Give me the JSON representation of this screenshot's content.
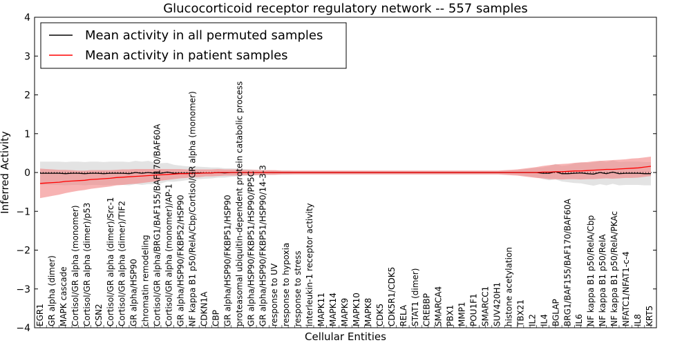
{
  "chart_data": {
    "type": "line",
    "title": "Glucocorticoid receptor regulatory network -- 557 samples",
    "xlabel": "Cellular Entities",
    "ylabel": "Inferred Activity",
    "ylim": [
      -4,
      4
    ],
    "yticks": [
      -4,
      -3,
      -2,
      -1,
      0,
      1,
      2,
      3,
      4
    ],
    "n_points": 97,
    "legend_placement": "top-left",
    "series": [
      {
        "name": "Mean activity in all permuted samples",
        "color": "#000000",
        "band_color": "#cccccc",
        "values": [
          -0.02,
          -0.02,
          -0.02,
          -0.02,
          -0.03,
          -0.02,
          -0.02,
          -0.03,
          -0.02,
          -0.02,
          -0.03,
          -0.02,
          -0.02,
          -0.02,
          -0.03,
          0.0,
          -0.02,
          0.0,
          -0.02,
          -0.02,
          0.01,
          -0.02,
          -0.02,
          -0.02,
          -0.01,
          -0.01,
          -0.01,
          -0.01,
          0.0,
          -0.01,
          0.0,
          0.0,
          0.0,
          0.0,
          0.0,
          0.0,
          0.0,
          0.0,
          0.0,
          0.0,
          0.0,
          0.0,
          0.0,
          0.0,
          0.0,
          0.0,
          0.0,
          0.0,
          0.0,
          0.0,
          0.0,
          0.0,
          0.0,
          0.0,
          0.0,
          0.0,
          0.0,
          0.0,
          0.0,
          0.0,
          0.0,
          0.0,
          0.0,
          0.0,
          0.0,
          0.0,
          0.0,
          0.0,
          0.0,
          0.0,
          0.0,
          0.0,
          0.0,
          0.0,
          0.0,
          0.0,
          0.0,
          0.0,
          0.0,
          -0.02,
          -0.02,
          0.02,
          -0.03,
          -0.03,
          -0.02,
          -0.01,
          -0.03,
          -0.04,
          0.0,
          -0.03,
          0.01,
          -0.03,
          -0.02,
          -0.02,
          -0.02,
          -0.03,
          -0.03
        ],
        "band_halfwidth": [
          0.3,
          0.3,
          0.3,
          0.3,
          0.3,
          0.3,
          0.3,
          0.3,
          0.3,
          0.3,
          0.3,
          0.3,
          0.3,
          0.3,
          0.3,
          0.3,
          0.3,
          0.3,
          0.28,
          0.26,
          0.24,
          0.22,
          0.2,
          0.18,
          0.17,
          0.16,
          0.15,
          0.14,
          0.13,
          0.12,
          0.11,
          0.1,
          0.09,
          0.08,
          0.07,
          0.06,
          0.06,
          0.05,
          0.05,
          0.05,
          0.04,
          0.04,
          0.04,
          0.04,
          0.04,
          0.04,
          0.04,
          0.04,
          0.04,
          0.04,
          0.04,
          0.04,
          0.04,
          0.04,
          0.04,
          0.04,
          0.04,
          0.04,
          0.04,
          0.04,
          0.04,
          0.04,
          0.04,
          0.04,
          0.04,
          0.04,
          0.04,
          0.04,
          0.04,
          0.04,
          0.04,
          0.04,
          0.04,
          0.05,
          0.05,
          0.06,
          0.08,
          0.1,
          0.12,
          0.15,
          0.18,
          0.2,
          0.2,
          0.22,
          0.25,
          0.27,
          0.28,
          0.3,
          0.3,
          0.3,
          0.3,
          0.3,
          0.3,
          0.3,
          0.3,
          0.3,
          0.3
        ]
      },
      {
        "name": "Mean activity in patient samples",
        "color": "#ff0000",
        "band_color": "#f28080",
        "values": [
          -0.28,
          -0.27,
          -0.26,
          -0.25,
          -0.23,
          -0.22,
          -0.21,
          -0.2,
          -0.18,
          -0.17,
          -0.16,
          -0.15,
          -0.13,
          -0.12,
          -0.11,
          -0.1,
          -0.09,
          -0.08,
          -0.07,
          -0.06,
          -0.05,
          -0.04,
          -0.03,
          -0.03,
          -0.02,
          -0.02,
          -0.01,
          -0.01,
          0.0,
          0.0,
          0.0,
          0.0,
          0.0,
          0.0,
          0.0,
          0.0,
          0.0,
          0.0,
          0.0,
          0.0,
          0.0,
          0.0,
          0.0,
          0.0,
          0.0,
          0.0,
          0.0,
          0.0,
          0.0,
          0.0,
          0.0,
          0.0,
          0.0,
          0.0,
          0.0,
          0.0,
          0.0,
          0.0,
          0.0,
          0.0,
          0.0,
          0.0,
          0.0,
          0.0,
          0.0,
          0.0,
          0.0,
          0.0,
          0.0,
          0.0,
          0.0,
          0.0,
          0.0,
          0.0,
          0.0,
          0.0,
          0.0,
          0.0,
          0.0,
          0.01,
          0.01,
          0.02,
          0.02,
          0.03,
          0.04,
          0.04,
          0.05,
          0.06,
          0.07,
          0.08,
          0.08,
          0.09,
          0.1,
          0.11,
          0.12,
          0.14,
          0.16
        ],
        "band_halfwidth": [
          0.38,
          0.36,
          0.34,
          0.32,
          0.3,
          0.28,
          0.26,
          0.25,
          0.24,
          0.23,
          0.22,
          0.21,
          0.2,
          0.2,
          0.19,
          0.19,
          0.18,
          0.17,
          0.16,
          0.15,
          0.14,
          0.13,
          0.12,
          0.11,
          0.1,
          0.1,
          0.09,
          0.09,
          0.09,
          0.08,
          0.08,
          0.08,
          0.07,
          0.07,
          0.07,
          0.06,
          0.06,
          0.06,
          0.05,
          0.05,
          0.05,
          0.05,
          0.05,
          0.05,
          0.05,
          0.05,
          0.05,
          0.05,
          0.05,
          0.05,
          0.05,
          0.05,
          0.05,
          0.05,
          0.05,
          0.05,
          0.05,
          0.05,
          0.05,
          0.05,
          0.05,
          0.05,
          0.05,
          0.05,
          0.05,
          0.05,
          0.05,
          0.05,
          0.05,
          0.05,
          0.05,
          0.05,
          0.05,
          0.06,
          0.07,
          0.08,
          0.1,
          0.12,
          0.14,
          0.16,
          0.18,
          0.19,
          0.2,
          0.2,
          0.21,
          0.22,
          0.22,
          0.23,
          0.23,
          0.23,
          0.24,
          0.24,
          0.24,
          0.25,
          0.25,
          0.25,
          0.25
        ]
      }
    ],
    "entity_labels": [
      "EGR1",
      "GR alpha (dimer)",
      "MAPK cascade",
      "Cortisol/GR alpha (monomer)",
      "Cortisol/GR alpha (dimer)/p53",
      "CSN2",
      "Cortisol/GR alpha (dimer)/Src-1",
      "Cortisol/GR alpha (dimer)/TIF2",
      "GR alpha/HSP90",
      "chromatin remodeling",
      "Cortisol/GR alpha/BRG1/BAF155/BAF170/BAF60A",
      "Cortisol/GR alpha (monomer)/AP-1",
      "GR alpha/HSP90/FKBP52/HSP90",
      "NF kappa B1 p50/RelA/Cbp/Cortisol/GR alpha (monomer)",
      "CDKN1A",
      "CBP",
      "GR alpha/HSP90/FKBP51/HSP90",
      "proteasomal ubiquitin-dependent protein catabolic process",
      "GR alpha/HSP90/FKBP51/HSP90/PP5C",
      "GR alpha/HSP90/FKBP51/HSP90/14-3-3",
      "response to UV",
      "response to hypoxia",
      "response to stress",
      "interleukin-1 receptor activity",
      "MAPK11",
      "MAPK14",
      "MAPK9",
      "MAPK10",
      "MAPK8",
      "CDK5",
      "CDK5R1/CDK5",
      "RELA",
      "STAT1 (dimer)",
      "CREBBP",
      "SMARCA4",
      "PBX1",
      "MMP1",
      "POU1F1",
      "SMARCC1",
      "SUV420H1",
      "histone acetylation",
      "TBX21",
      "IL2",
      "IL4",
      "BGLAP",
      "BRG1/BAF155/BAF170/BAF60A",
      "IL6",
      "NF kappa B1 p50/RelA/Cbp",
      "NF kappa B1 p50/RelA",
      "NF kappa B1 p50/RelA/PKAc",
      "NFATC1/NFAT1-c-4",
      "IL8",
      "KRT5"
    ]
  }
}
